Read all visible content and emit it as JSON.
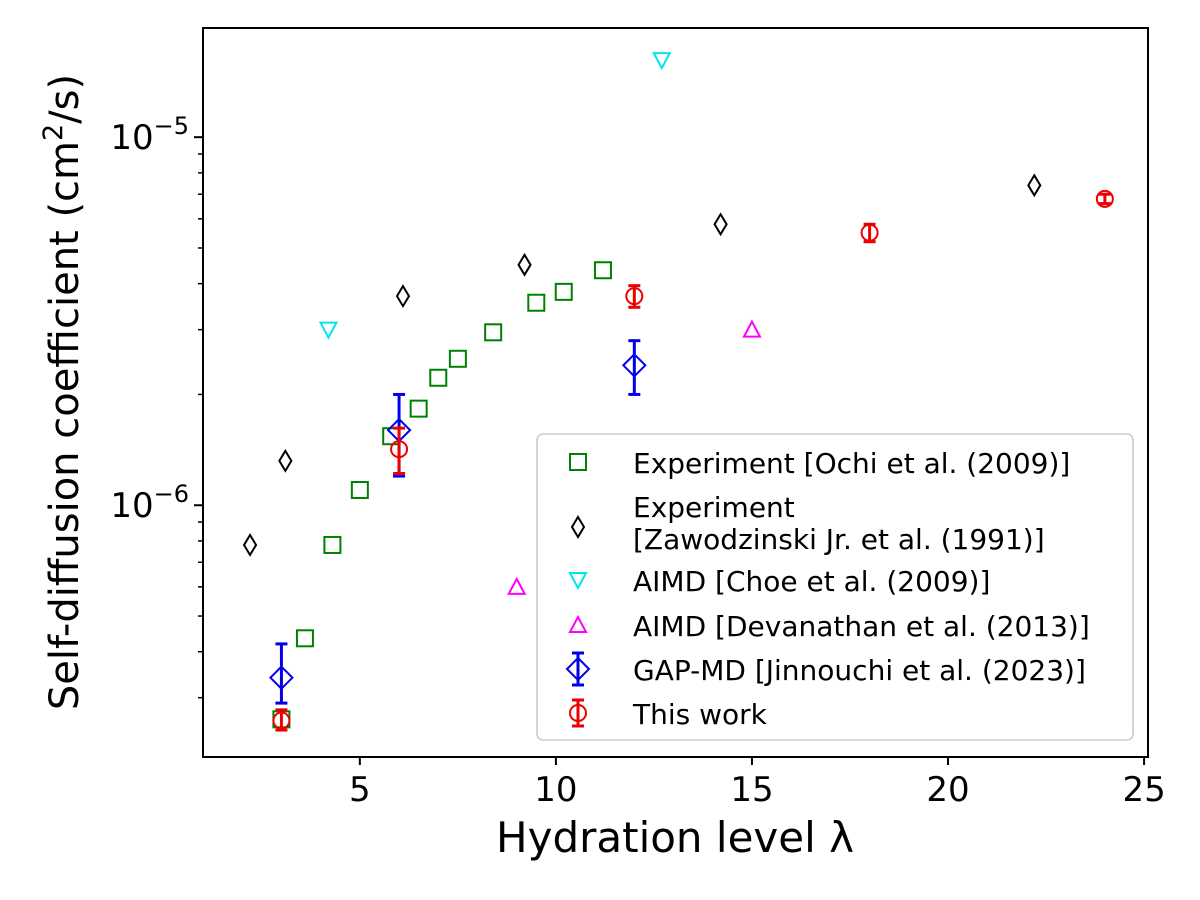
{
  "chart_data": {
    "type": "scatter",
    "title": "",
    "xlabel": "Hydration level λ",
    "ylabel": "Self-diffusion coefficient (cm²/s)",
    "ylabel_parts": {
      "before": "Self-diffusion coefficient (cm",
      "sup": "2",
      "after": "/s)"
    },
    "y_scale": "log",
    "xlim": [
      1.0,
      25.1
    ],
    "ylim": [
      2.07e-07,
      1.98e-05
    ],
    "x_ticks": [
      {
        "value": 5,
        "label": "5"
      },
      {
        "value": 10,
        "label": "10"
      },
      {
        "value": 15,
        "label": "15"
      },
      {
        "value": 20,
        "label": "20"
      },
      {
        "value": 25,
        "label": "25"
      }
    ],
    "y_ticks": [
      {
        "value": 1e-06,
        "base": "10",
        "exp": "−6"
      },
      {
        "value": 1e-05,
        "base": "10",
        "exp": "−5"
      }
    ],
    "grid": false,
    "legend_position": "lower-right",
    "series": [
      {
        "name": "Experiment [Ochi et al. (2009)]",
        "marker": "square",
        "color": "#008000",
        "points": [
          [
            3.0,
            2.62e-07
          ],
          [
            3.6,
            4.35e-07
          ],
          [
            4.3,
            7.8e-07
          ],
          [
            5.0,
            1.1e-06
          ],
          [
            5.8,
            1.54e-06
          ],
          [
            6.5,
            1.83e-06
          ],
          [
            7.0,
            2.22e-06
          ],
          [
            7.5,
            2.5e-06
          ],
          [
            8.4,
            2.95e-06
          ],
          [
            9.5,
            3.55e-06
          ],
          [
            10.2,
            3.8e-06
          ],
          [
            11.2,
            4.35e-06
          ]
        ]
      },
      {
        "name": "Experiment [Zawodzinski Jr. et al. (1991)]",
        "legend_lines": [
          "Experiment",
          "[Zawodzinski Jr. et al. (1991)]"
        ],
        "marker": "thin_diamond",
        "color": "#000000",
        "points": [
          [
            2.2,
            7.8e-07
          ],
          [
            3.1,
            1.32e-06
          ],
          [
            6.1,
            3.7e-06
          ],
          [
            9.2,
            4.5e-06
          ],
          [
            14.2,
            5.8e-06
          ],
          [
            22.2,
            7.4e-06
          ]
        ]
      },
      {
        "name": "AIMD [Choe et al. (2009)]",
        "marker": "triangle_down",
        "color": "#00e5ee",
        "points": [
          [
            4.2,
            3e-06
          ],
          [
            12.7,
            1.62e-05
          ]
        ]
      },
      {
        "name": "AIMD [Devanathan et al. (2013)]",
        "marker": "triangle_up",
        "color": "#ff00ff",
        "points": [
          [
            9.0,
            6e-07
          ],
          [
            15.0,
            3e-06
          ]
        ]
      },
      {
        "name": "GAP-MD [Jinnouchi et al. (2023)]",
        "marker": "diamond",
        "color": "#0000ee",
        "points": [
          [
            3.0,
            3.4e-07,
            2.9e-07,
            4.2e-07
          ],
          [
            6.0,
            1.6e-06,
            1.2e-06,
            2e-06
          ],
          [
            12.0,
            2.4e-06,
            2e-06,
            2.8e-06
          ]
        ]
      },
      {
        "name": "This work",
        "marker": "circle",
        "color": "#ee0000",
        "points": [
          [
            3.0,
            2.6e-07,
            2.45e-07,
            2.78e-07
          ],
          [
            6.0,
            1.42e-06,
            1.22e-06,
            1.62e-06
          ],
          [
            12.0,
            3.7e-06,
            3.45e-06,
            3.95e-06
          ],
          [
            18.0,
            5.5e-06,
            5.2e-06,
            5.8e-06
          ],
          [
            24.0,
            6.8e-06,
            6.6e-06,
            7e-06
          ]
        ]
      }
    ]
  }
}
